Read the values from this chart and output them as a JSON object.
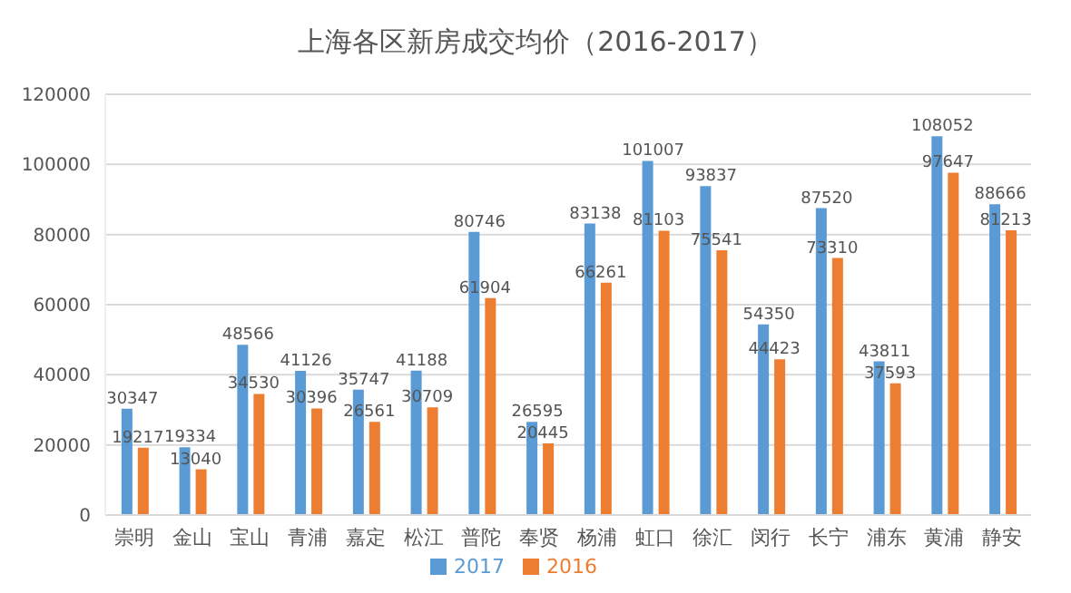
{
  "chart_data": {
    "type": "bar",
    "title": "上海各区新房成交均价（2016-2017）",
    "categories": [
      "崇明",
      "金山",
      "宝山",
      "青浦",
      "嘉定",
      "松江",
      "普陀",
      "奉贤",
      "杨浦",
      "虹口",
      "徐汇",
      "闵行",
      "长宁",
      "浦东",
      "黄浦",
      "静安"
    ],
    "series": [
      {
        "name": "2017",
        "color": "#5b9bd5",
        "values": [
          30347,
          19334,
          48566,
          41126,
          35747,
          41188,
          80746,
          26595,
          83138,
          101007,
          93837,
          54350,
          87520,
          43811,
          108052,
          88666
        ]
      },
      {
        "name": "2016",
        "color": "#ed7d31",
        "values": [
          19217,
          13040,
          34530,
          30396,
          26561,
          30709,
          61904,
          20445,
          66261,
          81103,
          75541,
          44423,
          73310,
          37593,
          97647,
          81213
        ]
      }
    ],
    "ylim": [
      0,
      120000
    ],
    "yticks": [
      0,
      20000,
      40000,
      60000,
      80000,
      100000,
      120000
    ],
    "grid": "y",
    "legend": "bottom",
    "data_labels": true
  }
}
